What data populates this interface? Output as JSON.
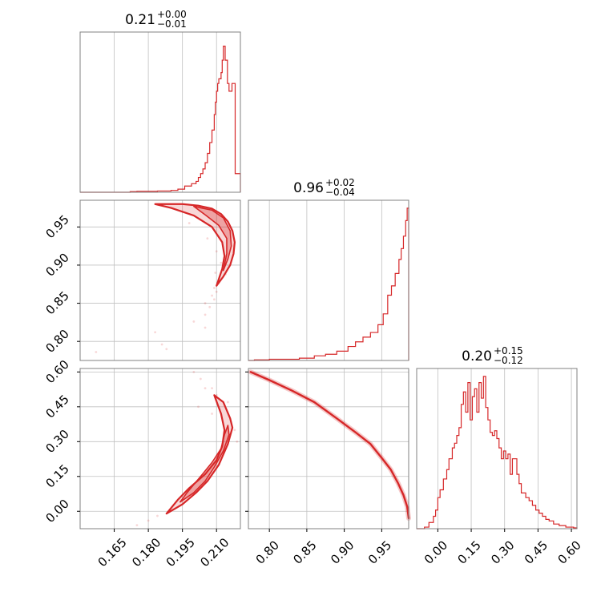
{
  "colors": {
    "accent": "#d62728",
    "grid": "#c0c0c0",
    "frame": "#808080",
    "text": "#000000"
  },
  "chart_data": [
    {
      "type": "histogram",
      "title": {
        "base": "0.21",
        "sup": "+0.00",
        "sub": "−0.01"
      },
      "xlim": [
        0.15,
        0.2205
      ],
      "grid_x": [
        0.165,
        0.18,
        0.195,
        0.21
      ],
      "grid": true,
      "bins": [
        [
          0.15,
          0.0
        ],
        [
          0.172,
          0.004
        ],
        [
          0.175,
          0.006
        ],
        [
          0.184,
          0.008
        ],
        [
          0.19,
          0.012
        ],
        [
          0.193,
          0.02
        ],
        [
          0.196,
          0.04
        ],
        [
          0.199,
          0.055
        ],
        [
          0.201,
          0.07
        ],
        [
          0.202,
          0.095
        ],
        [
          0.203,
          0.12
        ],
        [
          0.204,
          0.15
        ],
        [
          0.205,
          0.19
        ],
        [
          0.206,
          0.25
        ],
        [
          0.207,
          0.32
        ],
        [
          0.208,
          0.4
        ],
        [
          0.209,
          0.5
        ],
        [
          0.2095,
          0.58
        ],
        [
          0.21,
          0.65
        ],
        [
          0.2105,
          0.7
        ],
        [
          0.211,
          0.73
        ],
        [
          0.212,
          0.77
        ],
        [
          0.2125,
          0.85
        ],
        [
          0.213,
          0.94
        ],
        [
          0.2138,
          0.85
        ],
        [
          0.2148,
          0.7
        ],
        [
          0.2155,
          0.65
        ],
        [
          0.2168,
          0.7
        ],
        [
          0.2182,
          0.12
        ],
        [
          0.2205,
          0.0
        ]
      ]
    },
    {
      "type": "contour",
      "xlim": [
        0.15,
        0.2205
      ],
      "ylim": [
        0.775,
        0.985
      ],
      "grid_x": [
        0.165,
        0.18,
        0.195,
        0.21
      ],
      "grid_y": [
        0.8,
        0.85,
        0.9,
        0.95
      ],
      "ytick_labels": [
        "0.80",
        "0.85",
        "0.90",
        "0.95"
      ],
      "grid": true,
      "band_outer": [
        [
          0.183,
          0.98
        ],
        [
          0.195,
          0.98
        ],
        [
          0.202,
          0.978
        ],
        [
          0.208,
          0.974
        ],
        [
          0.212,
          0.967
        ],
        [
          0.215,
          0.957
        ],
        [
          0.217,
          0.945
        ],
        [
          0.218,
          0.93
        ],
        [
          0.2175,
          0.915
        ],
        [
          0.216,
          0.9
        ],
        [
          0.213,
          0.885
        ],
        [
          0.21,
          0.873
        ],
        [
          0.2125,
          0.895
        ],
        [
          0.2135,
          0.912
        ],
        [
          0.2125,
          0.93
        ],
        [
          0.208,
          0.95
        ],
        [
          0.2,
          0.965
        ],
        [
          0.19,
          0.975
        ],
        [
          0.183,
          0.98
        ]
      ],
      "band_inner": [
        [
          0.2,
          0.977
        ],
        [
          0.208,
          0.972
        ],
        [
          0.213,
          0.962
        ],
        [
          0.216,
          0.945
        ],
        [
          0.2165,
          0.925
        ],
        [
          0.215,
          0.908
        ],
        [
          0.213,
          0.893
        ],
        [
          0.2145,
          0.915
        ],
        [
          0.2145,
          0.935
        ],
        [
          0.211,
          0.952
        ],
        [
          0.205,
          0.966
        ],
        [
          0.2,
          0.977
        ]
      ],
      "scatter_points": [
        [
          0.157,
          0.786
        ],
        [
          0.183,
          0.812
        ],
        [
          0.186,
          0.796
        ],
        [
          0.188,
          0.79
        ],
        [
          0.205,
          0.85
        ],
        [
          0.2,
          0.826
        ],
        [
          0.205,
          0.818
        ],
        [
          0.209,
          0.87
        ],
        [
          0.208,
          0.86
        ],
        [
          0.211,
          0.877
        ],
        [
          0.214,
          0.888
        ],
        [
          0.212,
          0.903
        ],
        [
          0.21,
          0.918
        ],
        [
          0.206,
          0.935
        ],
        [
          0.198,
          0.955
        ],
        [
          0.21,
          0.865
        ],
        [
          0.209,
          0.855
        ],
        [
          0.207,
          0.845
        ],
        [
          0.205,
          0.835
        ],
        [
          0.2095,
          0.89
        ]
      ]
    },
    {
      "type": "histogram",
      "title": {
        "base": "0.96",
        "sup": "+0.02",
        "sub": "−0.04"
      },
      "xlim": [
        0.772,
        0.986
      ],
      "grid_x": [
        0.8,
        0.85,
        0.9,
        0.95
      ],
      "grid": true,
      "bins": [
        [
          0.772,
          0.0
        ],
        [
          0.78,
          0.004
        ],
        [
          0.8,
          0.008
        ],
        [
          0.84,
          0.015
        ],
        [
          0.86,
          0.03
        ],
        [
          0.875,
          0.04
        ],
        [
          0.89,
          0.06
        ],
        [
          0.905,
          0.09
        ],
        [
          0.915,
          0.12
        ],
        [
          0.925,
          0.15
        ],
        [
          0.935,
          0.18
        ],
        [
          0.945,
          0.23
        ],
        [
          0.952,
          0.3
        ],
        [
          0.958,
          0.42
        ],
        [
          0.963,
          0.48
        ],
        [
          0.968,
          0.56
        ],
        [
          0.973,
          0.65
        ],
        [
          0.976,
          0.72
        ],
        [
          0.979,
          0.8
        ],
        [
          0.982,
          0.9
        ],
        [
          0.984,
          0.98
        ],
        [
          0.986,
          0.0
        ]
      ]
    },
    {
      "type": "contour",
      "xlim": [
        0.15,
        0.2205
      ],
      "ylim": [
        -0.075,
        0.615
      ],
      "grid_x": [
        0.165,
        0.18,
        0.195,
        0.21
      ],
      "grid_y": [
        0.0,
        0.15,
        0.3,
        0.45,
        0.6
      ],
      "xtick_labels": [
        "0.165",
        "0.180",
        "0.195",
        "0.210"
      ],
      "ytick_labels": [
        "0.00",
        "0.15",
        "0.30",
        "0.45",
        "0.60"
      ],
      "grid": true,
      "band_outer": [
        [
          0.188,
          -0.01
        ],
        [
          0.195,
          0.03
        ],
        [
          0.201,
          0.08
        ],
        [
          0.206,
          0.13
        ],
        [
          0.211,
          0.2
        ],
        [
          0.215,
          0.29
        ],
        [
          0.217,
          0.36
        ],
        [
          0.216,
          0.4
        ],
        [
          0.213,
          0.47
        ],
        [
          0.209,
          0.5
        ],
        [
          0.212,
          0.42
        ],
        [
          0.2135,
          0.35
        ],
        [
          0.2125,
          0.28
        ],
        [
          0.21,
          0.22
        ],
        [
          0.205,
          0.16
        ],
        [
          0.198,
          0.1
        ],
        [
          0.193,
          0.05
        ],
        [
          0.188,
          -0.01
        ]
      ],
      "band_inner": [
        [
          0.194,
          0.04
        ],
        [
          0.2,
          0.08
        ],
        [
          0.205,
          0.13
        ],
        [
          0.209,
          0.19
        ],
        [
          0.213,
          0.26
        ],
        [
          0.2155,
          0.33
        ],
        [
          0.215,
          0.37
        ],
        [
          0.2135,
          0.33
        ],
        [
          0.212,
          0.27
        ],
        [
          0.208,
          0.21
        ],
        [
          0.203,
          0.15
        ],
        [
          0.197,
          0.08
        ],
        [
          0.194,
          0.04
        ]
      ],
      "scatter_points": [
        [
          0.175,
          -0.06
        ],
        [
          0.18,
          -0.04
        ],
        [
          0.184,
          -0.02
        ],
        [
          0.2,
          0.6
        ],
        [
          0.203,
          0.57
        ],
        [
          0.205,
          0.53
        ],
        [
          0.208,
          0.53
        ],
        [
          0.21,
          0.5
        ],
        [
          0.215,
          0.47
        ],
        [
          0.218,
          0.35
        ],
        [
          0.219,
          0.3
        ],
        [
          0.202,
          0.45
        ],
        [
          0.208,
          0.42
        ]
      ]
    },
    {
      "type": "curve",
      "xlim": [
        0.772,
        0.986
      ],
      "ylim": [
        -0.075,
        0.615
      ],
      "grid_x": [
        0.8,
        0.85,
        0.9,
        0.95
      ],
      "grid_y": [
        0.0,
        0.15,
        0.3,
        0.45,
        0.6
      ],
      "xtick_labels": [
        "0.80",
        "0.85",
        "0.90",
        "0.95"
      ],
      "grid": true,
      "curve": [
        [
          0.775,
          0.6
        ],
        [
          0.8,
          0.565
        ],
        [
          0.83,
          0.52
        ],
        [
          0.86,
          0.47
        ],
        [
          0.89,
          0.4
        ],
        [
          0.915,
          0.34
        ],
        [
          0.935,
          0.29
        ],
        [
          0.95,
          0.23
        ],
        [
          0.962,
          0.18
        ],
        [
          0.972,
          0.12
        ],
        [
          0.979,
          0.07
        ],
        [
          0.984,
          0.02
        ],
        [
          0.986,
          -0.03
        ]
      ]
    },
    {
      "type": "histogram",
      "title": {
        "base": "0.20",
        "sup": "+0.15",
        "sub": "−0.12"
      },
      "xlim": [
        -0.095,
        0.625
      ],
      "grid_x": [
        0.0,
        0.15,
        0.3,
        0.45,
        0.6
      ],
      "xtick_labels": [
        "0.00",
        "0.15",
        "0.30",
        "0.45",
        "0.60"
      ],
      "grid": true,
      "bins": [
        [
          -0.095,
          0.0
        ],
        [
          -0.06,
          0.01
        ],
        [
          -0.04,
          0.04
        ],
        [
          -0.02,
          0.08
        ],
        [
          -0.01,
          0.12
        ],
        [
          0.0,
          0.2
        ],
        [
          0.01,
          0.25
        ],
        [
          0.025,
          0.32
        ],
        [
          0.04,
          0.38
        ],
        [
          0.05,
          0.45
        ],
        [
          0.065,
          0.52
        ],
        [
          0.075,
          0.55
        ],
        [
          0.085,
          0.6
        ],
        [
          0.095,
          0.65
        ],
        [
          0.105,
          0.8
        ],
        [
          0.115,
          0.88
        ],
        [
          0.125,
          0.75
        ],
        [
          0.135,
          0.94
        ],
        [
          0.145,
          0.7
        ],
        [
          0.155,
          0.85
        ],
        [
          0.165,
          0.9
        ],
        [
          0.175,
          0.75
        ],
        [
          0.185,
          0.94
        ],
        [
          0.195,
          0.84
        ],
        [
          0.205,
          0.98
        ],
        [
          0.215,
          0.78
        ],
        [
          0.225,
          0.7
        ],
        [
          0.235,
          0.62
        ],
        [
          0.245,
          0.6
        ],
        [
          0.255,
          0.63
        ],
        [
          0.265,
          0.58
        ],
        [
          0.275,
          0.52
        ],
        [
          0.285,
          0.45
        ],
        [
          0.295,
          0.5
        ],
        [
          0.305,
          0.45
        ],
        [
          0.315,
          0.48
        ],
        [
          0.325,
          0.35
        ],
        [
          0.335,
          0.45
        ],
        [
          0.345,
          0.45
        ],
        [
          0.355,
          0.35
        ],
        [
          0.365,
          0.29
        ],
        [
          0.375,
          0.23
        ],
        [
          0.385,
          0.23
        ],
        [
          0.395,
          0.2
        ],
        [
          0.41,
          0.18
        ],
        [
          0.425,
          0.15
        ],
        [
          0.44,
          0.12
        ],
        [
          0.455,
          0.1
        ],
        [
          0.47,
          0.08
        ],
        [
          0.485,
          0.06
        ],
        [
          0.5,
          0.05
        ],
        [
          0.52,
          0.03
        ],
        [
          0.545,
          0.02
        ],
        [
          0.575,
          0.01
        ],
        [
          0.61,
          0.005
        ],
        [
          0.625,
          0.0
        ]
      ]
    }
  ]
}
